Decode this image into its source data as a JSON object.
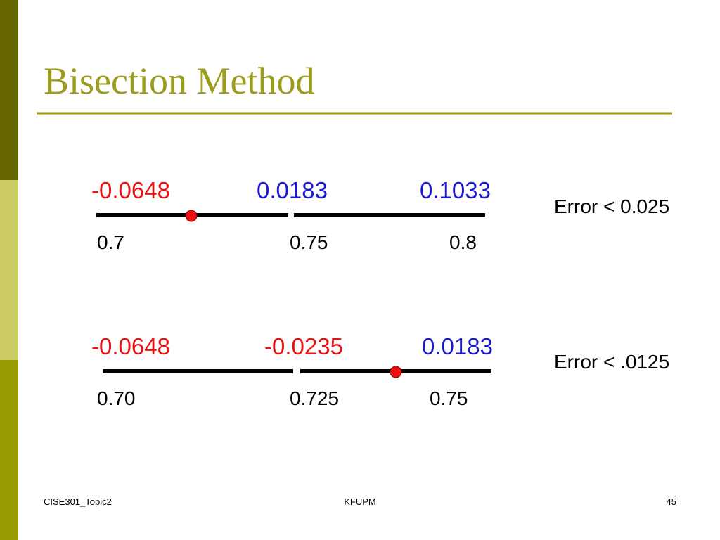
{
  "header": {
    "title": "Bisection Method"
  },
  "steps": [
    {
      "values": [
        "-0.0648",
        "0.0183",
        "0.1033"
      ],
      "points": [
        "0.7",
        "0.75",
        "0.8"
      ],
      "error": "Error < 0.025"
    },
    {
      "values": [
        "-0.0648",
        "-0.0235",
        "0.0183"
      ],
      "points": [
        "0.70",
        "0.725",
        "0.75"
      ],
      "error": "Error < .0125"
    }
  ],
  "footer": {
    "left": "CISE301_Topic2",
    "center": "KFUPM",
    "page": "45"
  }
}
